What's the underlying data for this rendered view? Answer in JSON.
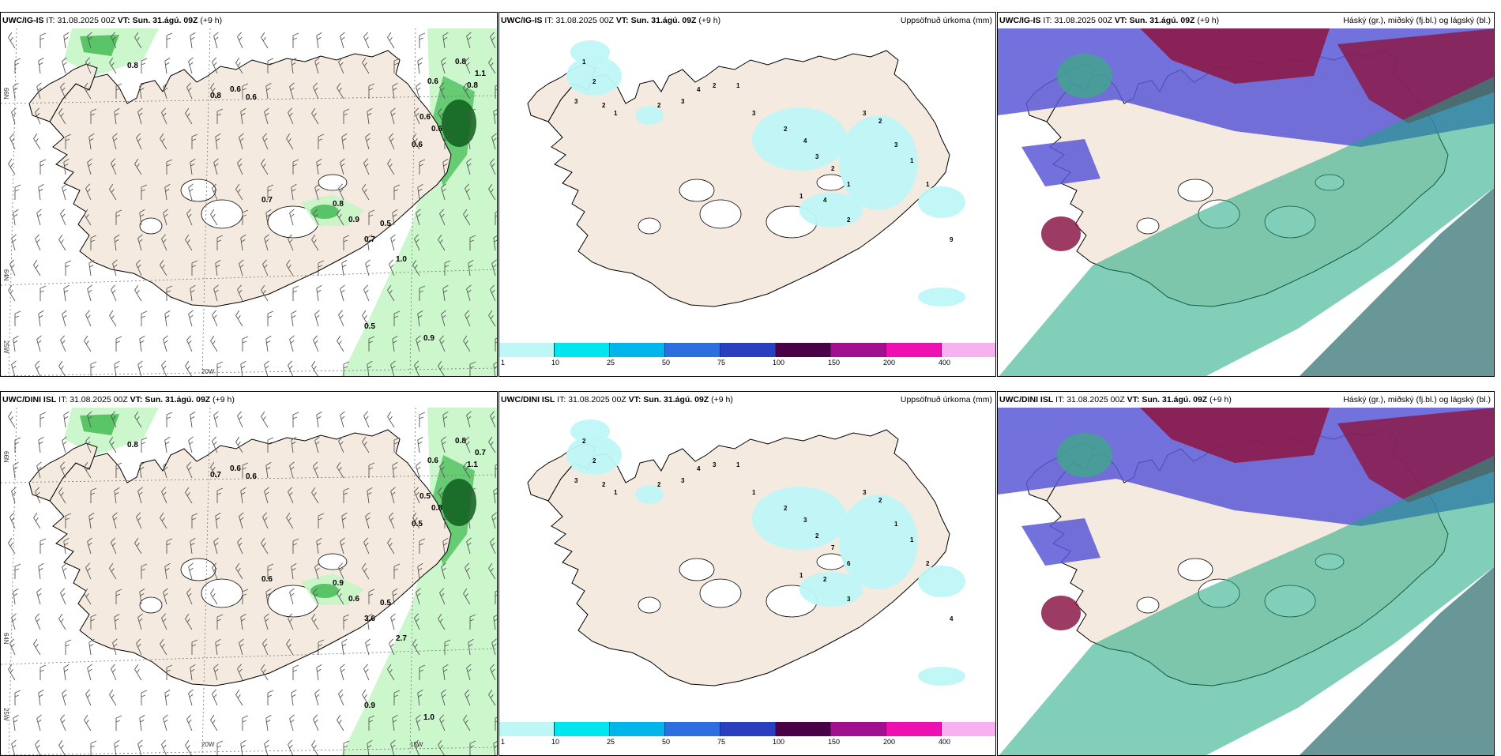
{
  "rows": [
    {
      "model": "UWC/IG-IS",
      "init_label": "IT:",
      "init_time": "31.08.2025 00Z",
      "valid_label": "VT:",
      "valid_time": "Sun. 31.ágú. 09Z",
      "lead": "(+9 h)",
      "wind_values": [
        "0.8",
        "0.6",
        "0.6",
        "0.8",
        "0.6",
        "0.6",
        "0.7",
        "0.8",
        "0.9",
        "0.5",
        "0.5",
        "0.9",
        "0.6",
        "0.8",
        "1.1",
        "0.8",
        "0.6",
        "1.0",
        "0.7"
      ],
      "precip_values": [
        "1",
        "2",
        "3",
        "2",
        "1",
        "2",
        "3",
        "4",
        "2",
        "1",
        "3",
        "2",
        "4",
        "3",
        "2",
        "1",
        "3",
        "2",
        "3",
        "1",
        "1",
        "9",
        "4",
        "2",
        "1"
      ]
    },
    {
      "model": "UWC/DINI ISL",
      "init_label": "IT:",
      "init_time": "31.08.2025 00Z",
      "valid_label": "VT:",
      "valid_time": "Sun. 31.ágú. 09Z",
      "lead": "(+9 h)",
      "wind_values": [
        "0.8",
        "0.6",
        "0.6",
        "0.7",
        "0.5",
        "0.8",
        "0.6",
        "0.9",
        "0.6",
        "0.5",
        "0.9",
        "1.0",
        "0.6",
        "0.8",
        "0.7",
        "1.1",
        "0.5",
        "2.7",
        "3.6"
      ],
      "precip_values": [
        "2",
        "2",
        "3",
        "2",
        "1",
        "2",
        "3",
        "4",
        "3",
        "1",
        "1",
        "2",
        "3",
        "2",
        "7",
        "6",
        "3",
        "2",
        "1",
        "1",
        "2",
        "4",
        "2",
        "3",
        "1"
      ]
    }
  ],
  "precip_title": "Uppsöfnuð úrkoma (mm)",
  "cloud_title": "Háský (gr.), miðský (fj.bl.) og lágský (bl.)",
  "axes": {
    "lat_66": "66N",
    "lat_64": "64N",
    "lon_20": "20W",
    "lon_15": "15W",
    "lon_25": "25W"
  },
  "colorbar": {
    "labels": [
      "1",
      "10",
      "25",
      "50",
      "75",
      "100",
      "150",
      "200",
      "400"
    ],
    "colors": [
      "#bff7f7",
      "#00e5ee",
      "#00b5ea",
      "#2e6fe0",
      "#2a3fbf",
      "#4a0046",
      "#a0108f",
      "#ee10b0",
      "#f7b0f0"
    ]
  },
  "colors": {
    "land": "#f5eadf",
    "precip_light": "#c6f6c6",
    "precip_mid": "#4cbf5c",
    "precip_dark": "#0e5e1c",
    "cloud_high": "#8b1a4a",
    "cloud_mid": "#5a58d6",
    "cloud_low": "#1aa880"
  }
}
